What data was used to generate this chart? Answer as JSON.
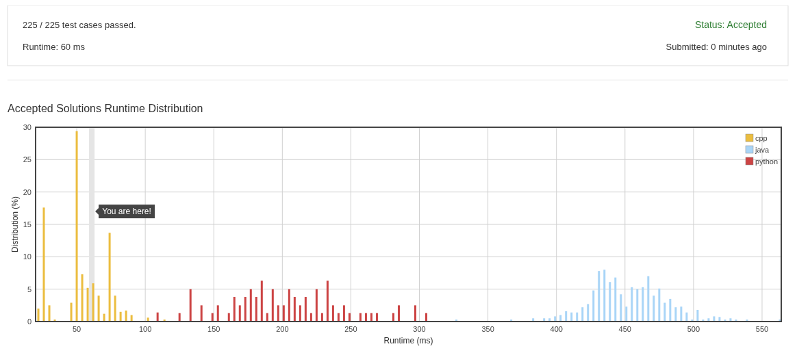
{
  "chart_data": {
    "type": "bar",
    "title": "Accepted Solutions Runtime Distribution",
    "xlabel": "Runtime (ms)",
    "ylabel": "Distribution (%)",
    "annotations": [
      "225 / 225 test cases passed.",
      "Runtime: 60 ms",
      "Status: Accepted",
      "Submitted: 0 minutes ago"
    ],
    "xlim": [
      20,
      564
    ],
    "xticks": [
      50,
      100,
      150,
      200,
      250,
      300,
      350,
      400,
      450,
      500,
      550
    ],
    "ylim": [
      0,
      30
    ],
    "yticks": [
      0,
      5,
      10,
      15,
      20,
      25,
      30
    ],
    "grid": true,
    "legend": "top right",
    "bands": [
      {
        "axis": "x",
        "from": 59,
        "to": 63,
        "label": "You are here!",
        "color": "#e5e5e5"
      }
    ],
    "series": [
      {
        "name": "cpp",
        "color": "#ebbd3f",
        "x": [
          22,
          26,
          30,
          34,
          46,
          50,
          54,
          58,
          62,
          66,
          70,
          74,
          78,
          82,
          86,
          90,
          102,
          114
        ],
        "values": [
          2.0,
          17.6,
          2.5,
          0.3,
          2.9,
          29.4,
          7.3,
          5.2,
          5.9,
          4.0,
          1.2,
          13.7,
          4.0,
          1.5,
          1.7,
          1.0,
          0.6,
          0.3
        ]
      },
      {
        "name": "java",
        "color": "#a9d5f7",
        "x": [
          327,
          367,
          383,
          391,
          395,
          399,
          403,
          407,
          411,
          415,
          419,
          423,
          427,
          431,
          435,
          439,
          443,
          447,
          451,
          455,
          459,
          463,
          467,
          471,
          475,
          479,
          483,
          487,
          491,
          495,
          499,
          503,
          507,
          511,
          515,
          519,
          523,
          527,
          531,
          539,
          563
        ],
        "values": [
          0.3,
          0.3,
          0.5,
          0.5,
          0.5,
          0.8,
          1.0,
          1.6,
          1.4,
          1.4,
          2.2,
          2.7,
          4.8,
          7.8,
          8.0,
          6.1,
          6.8,
          4.2,
          2.3,
          5.3,
          5.0,
          5.3,
          7.0,
          4.0,
          5.1,
          2.9,
          3.5,
          2.2,
          2.3,
          1.4,
          0.3,
          1.8,
          0.3,
          0.5,
          0.8,
          0.7,
          0.3,
          0.5,
          0.3,
          0.3,
          0.3
        ]
      },
      {
        "name": "python",
        "color": "#cc4444",
        "x": [
          109,
          125,
          133,
          141,
          149,
          153,
          161,
          165,
          169,
          173,
          177,
          181,
          185,
          189,
          193,
          197,
          201,
          205,
          209,
          213,
          217,
          221,
          225,
          229,
          233,
          237,
          241,
          245,
          249,
          257,
          261,
          265,
          269,
          281,
          285,
          297,
          305
        ],
        "values": [
          1.4,
          1.3,
          5.0,
          2.5,
          1.3,
          2.5,
          1.3,
          3.8,
          2.5,
          3.8,
          5.0,
          3.8,
          6.3,
          1.3,
          5.0,
          2.5,
          2.5,
          5.0,
          3.8,
          2.5,
          3.8,
          1.3,
          5.0,
          1.3,
          6.3,
          2.5,
          1.3,
          2.5,
          1.3,
          1.3,
          1.3,
          1.3,
          1.3,
          1.3,
          2.5,
          2.5,
          1.3
        ]
      }
    ]
  }
}
